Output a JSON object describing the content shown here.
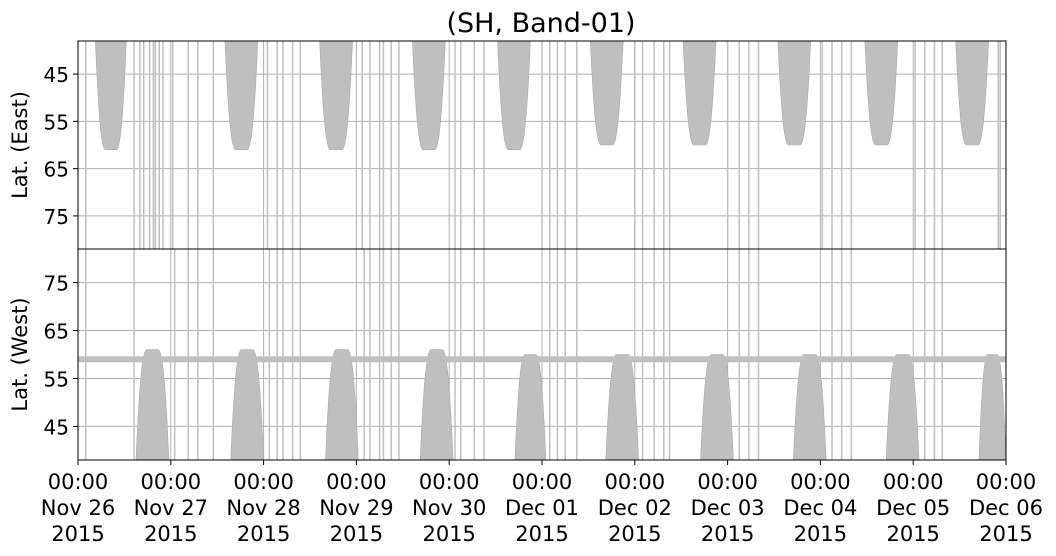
{
  "chart_data": {
    "type": "heatmap",
    "title": "(SH, Band-01)",
    "colors": {
      "coverage": "#bfbfbf",
      "grid": "#b0b0b0",
      "axis": "#000000",
      "background": "#ffffff"
    },
    "x_ticks": [
      {
        "time": "00:00",
        "date": "Nov 26",
        "year": "2015"
      },
      {
        "time": "00:00",
        "date": "Nov 27",
        "year": "2015"
      },
      {
        "time": "00:00",
        "date": "Nov 28",
        "year": "2015"
      },
      {
        "time": "00:00",
        "date": "Nov 29",
        "year": "2015"
      },
      {
        "time": "00:00",
        "date": "Nov 30",
        "year": "2015"
      },
      {
        "time": "00:00",
        "date": "Dec 01",
        "year": "2015"
      },
      {
        "time": "00:00",
        "date": "Dec 02",
        "year": "2015"
      },
      {
        "time": "00:00",
        "date": "Dec 03",
        "year": "2015"
      },
      {
        "time": "00:00",
        "date": "Dec 04",
        "year": "2015"
      },
      {
        "time": "00:00",
        "date": "Dec 05",
        "year": "2015"
      },
      {
        "time": "00:00",
        "date": "Dec 06",
        "year": "2015"
      }
    ],
    "x_range": [
      "2015-11-26 00:00",
      "2015-12-06 00:00"
    ],
    "grid": true,
    "panels": [
      {
        "ylabel": "Lat. (East)",
        "y_ticks": [
          45,
          55,
          65,
          75
        ],
        "y_range": [
          38,
          82
        ],
        "y_inverted": true,
        "lobes": [
          {
            "start": "2015-11-26 04:30",
            "end": "2015-11-26 12:30",
            "edge_lat": 38,
            "peak_lat": 61
          },
          {
            "start": "2015-11-27 14:00",
            "end": "2015-11-27 22:30",
            "edge_lat": 38,
            "peak_lat": 61
          },
          {
            "start": "2015-11-28 14:30",
            "end": "2015-11-28 23:00",
            "edge_lat": 38,
            "peak_lat": 61
          },
          {
            "start": "2015-11-29 14:30",
            "end": "2015-11-29 23:00",
            "edge_lat": 38,
            "peak_lat": 61
          },
          {
            "start": "2015-11-30 12:30",
            "end": "2015-11-30 21:00",
            "edge_lat": 38,
            "peak_lat": 61
          },
          {
            "start": "2015-12-01 12:30",
            "end": "2015-12-01 21:00",
            "edge_lat": 38,
            "peak_lat": 60
          },
          {
            "start": "2015-12-02 12:30",
            "end": "2015-12-02 21:00",
            "edge_lat": 38,
            "peak_lat": 60
          },
          {
            "start": "2015-12-03 13:00",
            "end": "2015-12-03 21:30",
            "edge_lat": 38,
            "peak_lat": 60
          },
          {
            "start": "2015-12-04 11:30",
            "end": "2015-12-04 20:00",
            "edge_lat": 38,
            "peak_lat": 60
          },
          {
            "start": "2015-12-05 11:00",
            "end": "2015-12-05 19:30",
            "edge_lat": 38,
            "peak_lat": 60
          }
        ],
        "scan_times": [
          "2015-11-26 02:00",
          "2015-11-26 14:30",
          "2015-11-26 16:00",
          "2015-11-26 17:00",
          "2015-11-26 18:30",
          "2015-11-26 19:30",
          "2015-11-26 20:00",
          "2015-11-26 21:00",
          "2015-11-26 22:00",
          "2015-11-27 00:30",
          "2015-11-27 04:30",
          "2015-11-27 07:00",
          "2015-11-27 11:00",
          "2015-11-28 01:00",
          "2015-11-28 03:30",
          "2015-11-28 05:00",
          "2015-11-28 07:30",
          "2015-11-28 09:30",
          "2015-11-29 01:30",
          "2015-11-29 03:30",
          "2015-11-29 06:00",
          "2015-11-29 07:00",
          "2015-11-29 09:00",
          "2015-11-29 11:00",
          "2015-11-30 01:30",
          "2015-11-30 03:00",
          "2015-11-30 06:30",
          "2015-11-30 09:00",
          "2015-12-01 00:00",
          "2015-12-01 02:00",
          "2015-12-01 04:00",
          "2015-12-01 06:00",
          "2015-12-01 09:00",
          "2015-12-02 00:00",
          "2015-12-02 02:00",
          "2015-12-02 05:00",
          "2015-12-02 07:30",
          "2015-12-02 09:00",
          "2015-12-03 00:00",
          "2015-12-03 03:00",
          "2015-12-03 05:30",
          "2015-12-03 08:00",
          "2015-12-04 00:30",
          "2015-12-04 03:00",
          "2015-12-04 05:30",
          "2015-12-04 08:00",
          "2015-12-05 00:30",
          "2015-12-05 03:00",
          "2015-12-05 05:30",
          "2015-12-05 07:30",
          "2015-12-05 22:00",
          "2015-12-05 22:30"
        ]
      },
      {
        "ylabel": "Lat. (West)",
        "y_ticks": [
          45,
          55,
          65,
          75
        ],
        "y_range": [
          38,
          82
        ],
        "y_inverted": false,
        "band_lat": 59,
        "lobes": [
          {
            "start": "2015-11-26 15:00",
            "end": "2015-11-26 23:30",
            "edge_lat": 38,
            "peak_lat": 61
          },
          {
            "start": "2015-11-27 15:30",
            "end": "2015-11-28 00:00",
            "edge_lat": 38,
            "peak_lat": 61
          },
          {
            "start": "2015-11-28 16:00",
            "end": "2015-11-29 00:30",
            "edge_lat": 38,
            "peak_lat": 61
          },
          {
            "start": "2015-11-29 16:30",
            "end": "2015-11-30 01:00",
            "edge_lat": 38,
            "peak_lat": 61
          },
          {
            "start": "2015-11-30 17:00",
            "end": "2015-12-01 01:00",
            "edge_lat": 38,
            "peak_lat": 60
          },
          {
            "start": "2015-12-01 16:30",
            "end": "2015-12-02 01:00",
            "edge_lat": 38,
            "peak_lat": 60
          },
          {
            "start": "2015-12-02 17:00",
            "end": "2015-12-03 01:30",
            "edge_lat": 38,
            "peak_lat": 60
          },
          {
            "start": "2015-12-03 17:00",
            "end": "2015-12-04 01:30",
            "edge_lat": 38,
            "peak_lat": 60
          },
          {
            "start": "2015-12-04 17:00",
            "end": "2015-12-05 01:30",
            "edge_lat": 38,
            "peak_lat": 60
          },
          {
            "start": "2015-12-05 17:00",
            "end": "2015-12-06 00:00",
            "edge_lat": 38,
            "peak_lat": 60
          }
        ],
        "scan_times": [
          "2015-11-26 02:00",
          "2015-11-26 14:30",
          "2015-11-27 01:00",
          "2015-11-27 04:30",
          "2015-11-27 07:00",
          "2015-11-27 11:00",
          "2015-11-28 01:30",
          "2015-11-28 03:30",
          "2015-11-28 05:00",
          "2015-11-28 07:30",
          "2015-11-28 09:30",
          "2015-11-29 02:00",
          "2015-11-29 03:30",
          "2015-11-29 06:00",
          "2015-11-29 07:00",
          "2015-11-29 09:00",
          "2015-11-29 11:00",
          "2015-11-30 01:30",
          "2015-11-30 03:00",
          "2015-11-30 06:30",
          "2015-11-30 09:00",
          "2015-12-01 02:00",
          "2015-12-01 04:00",
          "2015-12-01 06:00",
          "2015-12-01 09:00",
          "2015-12-02 02:00",
          "2015-12-02 05:00",
          "2015-12-02 07:30",
          "2015-12-02 09:00",
          "2015-12-03 03:00",
          "2015-12-03 05:30",
          "2015-12-03 08:00",
          "2015-12-04 03:00",
          "2015-12-04 05:30",
          "2015-12-04 08:00",
          "2015-12-05 03:00",
          "2015-12-05 05:30",
          "2015-12-05 07:30"
        ]
      }
    ]
  }
}
